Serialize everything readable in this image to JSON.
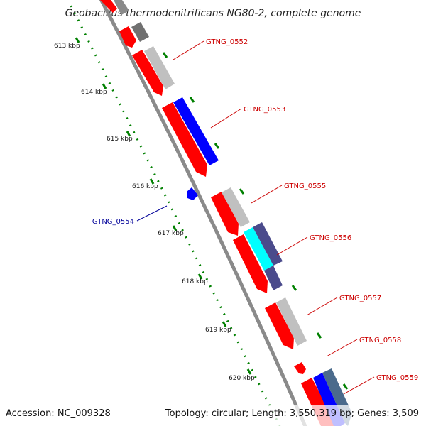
{
  "title": "Geobacillus thermodenitrificans NG80-2, complete genome",
  "ticks": [
    "613 kbp",
    "614 kbp",
    "615 kbp",
    "616 kbp",
    "617 kbp",
    "618 kbp",
    "619 kbp",
    "620 kbp"
  ],
  "labels": {
    "g0552": "GTNG_0552",
    "g0553": "GTNG_0553",
    "g0554": "GTNG_0554",
    "g0555": "GTNG_0555",
    "g0556": "GTNG_0556",
    "g0557": "GTNG_0557",
    "g0558": "GTNG_0558",
    "g0559": "GTNG_0559"
  },
  "footer": {
    "accession": "Accession: NC_009328",
    "topology": "Topology: circular; Length: 3,550,319 bp; Genes: 3,509"
  },
  "colors": {
    "gene_red": "#ff0000",
    "gene_blue": "#0000ff",
    "cog_gray": "#c0c0c0",
    "cog_dark_gray": "#707070",
    "cog_cyan": "#00ffff",
    "cog_slate": "#4b4b8c",
    "backbone": "#8a8a8a",
    "tick_green": "#008000",
    "label_red": "#cc0000",
    "label_blue": "#000099"
  }
}
